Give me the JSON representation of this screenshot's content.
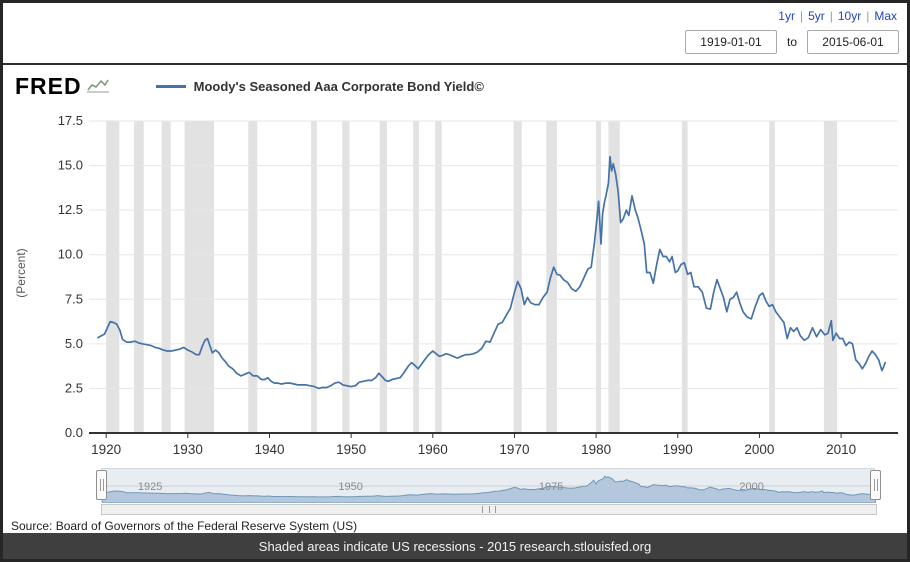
{
  "header": {
    "range_links": [
      "1yr",
      "5yr",
      "10yr",
      "Max"
    ],
    "start_date": "1919-01-01",
    "to_label": "to",
    "end_date": "2015-06-01"
  },
  "logo": {
    "text": "FRED"
  },
  "legend": {
    "label": "Moody's Seasoned Aaa Corporate Bond Yield©"
  },
  "colors": {
    "line": "#4572a7",
    "recession": "#e2e2e2",
    "grid": "#e6e6e6",
    "axis": "#333333",
    "link": "#2244bb",
    "footer_bg": "#3f3f3f",
    "mini_fill": "#b3c8dc",
    "mini_line": "#7097b8",
    "mini_bg": "#e8edf2"
  },
  "chart_data": {
    "type": "line",
    "title": "Moody's Seasoned Aaa Corporate Bond Yield©",
    "xlabel": "",
    "ylabel": "(Percent)",
    "ylim": [
      0,
      17.5
    ],
    "yticks": [
      0.0,
      2.5,
      5.0,
      7.5,
      10.0,
      12.5,
      15.0,
      17.5
    ],
    "xlim": [
      1919,
      2015.5
    ],
    "xticks": [
      1920,
      1930,
      1940,
      1950,
      1960,
      1970,
      1980,
      1990,
      2000,
      2010
    ],
    "grid": true,
    "legend_position": "top-left",
    "series": [
      {
        "name": "Moody's Seasoned Aaa Corporate Bond Yield",
        "points": [
          [
            1919.0,
            5.35
          ],
          [
            1919.4,
            5.45
          ],
          [
            1919.8,
            5.55
          ],
          [
            1920.2,
            5.95
          ],
          [
            1920.5,
            6.25
          ],
          [
            1920.9,
            6.2
          ],
          [
            1921.3,
            6.1
          ],
          [
            1921.7,
            5.75
          ],
          [
            1922.0,
            5.25
          ],
          [
            1922.5,
            5.1
          ],
          [
            1923.0,
            5.1
          ],
          [
            1923.5,
            5.15
          ],
          [
            1924.0,
            5.05
          ],
          [
            1924.5,
            5.0
          ],
          [
            1925.0,
            4.95
          ],
          [
            1925.5,
            4.9
          ],
          [
            1926.0,
            4.8
          ],
          [
            1926.5,
            4.75
          ],
          [
            1927.0,
            4.65
          ],
          [
            1927.5,
            4.6
          ],
          [
            1928.0,
            4.6
          ],
          [
            1928.5,
            4.65
          ],
          [
            1929.0,
            4.7
          ],
          [
            1929.5,
            4.8
          ],
          [
            1930.0,
            4.65
          ],
          [
            1930.5,
            4.55
          ],
          [
            1931.0,
            4.4
          ],
          [
            1931.4,
            4.4
          ],
          [
            1931.8,
            4.9
          ],
          [
            1932.1,
            5.2
          ],
          [
            1932.4,
            5.3
          ],
          [
            1932.7,
            4.9
          ],
          [
            1933.0,
            4.5
          ],
          [
            1933.4,
            4.65
          ],
          [
            1933.8,
            4.5
          ],
          [
            1934.2,
            4.2
          ],
          [
            1934.6,
            4.0
          ],
          [
            1935.0,
            3.75
          ],
          [
            1935.5,
            3.6
          ],
          [
            1936.0,
            3.35
          ],
          [
            1936.5,
            3.2
          ],
          [
            1937.0,
            3.3
          ],
          [
            1937.5,
            3.4
          ],
          [
            1938.0,
            3.2
          ],
          [
            1938.5,
            3.2
          ],
          [
            1939.0,
            3.0
          ],
          [
            1939.4,
            3.0
          ],
          [
            1939.8,
            3.1
          ],
          [
            1940.2,
            2.9
          ],
          [
            1940.6,
            2.8
          ],
          [
            1941.0,
            2.8
          ],
          [
            1941.5,
            2.75
          ],
          [
            1942.0,
            2.8
          ],
          [
            1942.5,
            2.8
          ],
          [
            1943.0,
            2.75
          ],
          [
            1943.5,
            2.7
          ],
          [
            1944.0,
            2.7
          ],
          [
            1944.5,
            2.7
          ],
          [
            1945.0,
            2.65
          ],
          [
            1945.5,
            2.6
          ],
          [
            1946.0,
            2.5
          ],
          [
            1946.5,
            2.55
          ],
          [
            1947.0,
            2.55
          ],
          [
            1947.5,
            2.65
          ],
          [
            1948.0,
            2.8
          ],
          [
            1948.5,
            2.85
          ],
          [
            1949.0,
            2.7
          ],
          [
            1949.5,
            2.65
          ],
          [
            1950.0,
            2.6
          ],
          [
            1950.5,
            2.65
          ],
          [
            1951.0,
            2.85
          ],
          [
            1951.5,
            2.9
          ],
          [
            1952.0,
            2.95
          ],
          [
            1952.5,
            2.95
          ],
          [
            1953.0,
            3.1
          ],
          [
            1953.4,
            3.35
          ],
          [
            1953.8,
            3.15
          ],
          [
            1954.2,
            2.95
          ],
          [
            1954.6,
            2.9
          ],
          [
            1955.0,
            3.0
          ],
          [
            1955.5,
            3.05
          ],
          [
            1956.0,
            3.1
          ],
          [
            1956.5,
            3.4
          ],
          [
            1957.0,
            3.75
          ],
          [
            1957.4,
            3.95
          ],
          [
            1957.8,
            3.8
          ],
          [
            1958.2,
            3.6
          ],
          [
            1958.6,
            3.85
          ],
          [
            1959.0,
            4.1
          ],
          [
            1959.5,
            4.4
          ],
          [
            1960.0,
            4.6
          ],
          [
            1960.4,
            4.45
          ],
          [
            1960.8,
            4.3
          ],
          [
            1961.2,
            4.35
          ],
          [
            1961.6,
            4.45
          ],
          [
            1962.0,
            4.4
          ],
          [
            1962.5,
            4.3
          ],
          [
            1963.0,
            4.2
          ],
          [
            1963.5,
            4.3
          ],
          [
            1964.0,
            4.4
          ],
          [
            1964.5,
            4.4
          ],
          [
            1965.0,
            4.45
          ],
          [
            1965.5,
            4.55
          ],
          [
            1966.0,
            4.75
          ],
          [
            1966.5,
            5.15
          ],
          [
            1967.0,
            5.1
          ],
          [
            1967.5,
            5.6
          ],
          [
            1968.0,
            6.1
          ],
          [
            1968.5,
            6.2
          ],
          [
            1969.0,
            6.6
          ],
          [
            1969.5,
            7.0
          ],
          [
            1970.0,
            7.9
          ],
          [
            1970.4,
            8.5
          ],
          [
            1970.8,
            8.1
          ],
          [
            1971.2,
            7.2
          ],
          [
            1971.6,
            7.6
          ],
          [
            1972.0,
            7.3
          ],
          [
            1972.5,
            7.2
          ],
          [
            1973.0,
            7.2
          ],
          [
            1973.5,
            7.6
          ],
          [
            1974.0,
            7.9
          ],
          [
            1974.4,
            8.7
          ],
          [
            1974.8,
            9.3
          ],
          [
            1975.2,
            8.9
          ],
          [
            1975.6,
            8.85
          ],
          [
            1976.0,
            8.6
          ],
          [
            1976.5,
            8.45
          ],
          [
            1977.0,
            8.1
          ],
          [
            1977.5,
            7.95
          ],
          [
            1978.0,
            8.2
          ],
          [
            1978.5,
            8.7
          ],
          [
            1979.0,
            9.2
          ],
          [
            1979.4,
            9.3
          ],
          [
            1979.8,
            10.7
          ],
          [
            1980.1,
            12.0
          ],
          [
            1980.3,
            13.0
          ],
          [
            1980.6,
            10.6
          ],
          [
            1980.8,
            12.3
          ],
          [
            1981.0,
            12.9
          ],
          [
            1981.2,
            13.3
          ],
          [
            1981.5,
            14.0
          ],
          [
            1981.7,
            15.5
          ],
          [
            1981.9,
            14.7
          ],
          [
            1982.1,
            15.1
          ],
          [
            1982.4,
            14.5
          ],
          [
            1982.7,
            13.5
          ],
          [
            1983.0,
            11.8
          ],
          [
            1983.3,
            12.0
          ],
          [
            1983.7,
            12.5
          ],
          [
            1984.0,
            12.2
          ],
          [
            1984.4,
            13.3
          ],
          [
            1984.8,
            12.5
          ],
          [
            1985.1,
            12.1
          ],
          [
            1985.5,
            11.4
          ],
          [
            1985.9,
            10.6
          ],
          [
            1986.2,
            9.0
          ],
          [
            1986.6,
            9.0
          ],
          [
            1987.0,
            8.4
          ],
          [
            1987.4,
            9.4
          ],
          [
            1987.8,
            10.3
          ],
          [
            1988.2,
            9.9
          ],
          [
            1988.6,
            9.9
          ],
          [
            1989.0,
            9.6
          ],
          [
            1989.3,
            9.9
          ],
          [
            1989.7,
            9.0
          ],
          [
            1990.0,
            9.1
          ],
          [
            1990.4,
            9.45
          ],
          [
            1990.8,
            9.55
          ],
          [
            1991.2,
            8.9
          ],
          [
            1991.6,
            9.0
          ],
          [
            1992.0,
            8.2
          ],
          [
            1992.5,
            8.2
          ],
          [
            1993.0,
            7.9
          ],
          [
            1993.5,
            7.0
          ],
          [
            1994.0,
            6.95
          ],
          [
            1994.4,
            7.9
          ],
          [
            1994.8,
            8.6
          ],
          [
            1995.2,
            8.1
          ],
          [
            1995.6,
            7.6
          ],
          [
            1996.0,
            6.8
          ],
          [
            1996.4,
            7.5
          ],
          [
            1996.8,
            7.6
          ],
          [
            1997.2,
            7.9
          ],
          [
            1997.6,
            7.3
          ],
          [
            1998.0,
            6.8
          ],
          [
            1998.5,
            6.5
          ],
          [
            1999.0,
            6.4
          ],
          [
            1999.5,
            7.1
          ],
          [
            2000.0,
            7.7
          ],
          [
            2000.4,
            7.85
          ],
          [
            2000.8,
            7.4
          ],
          [
            2001.2,
            7.1
          ],
          [
            2001.6,
            7.2
          ],
          [
            2002.0,
            6.8
          ],
          [
            2002.5,
            6.5
          ],
          [
            2003.0,
            6.2
          ],
          [
            2003.4,
            5.3
          ],
          [
            2003.8,
            5.9
          ],
          [
            2004.2,
            5.7
          ],
          [
            2004.6,
            5.9
          ],
          [
            2005.0,
            5.45
          ],
          [
            2005.5,
            5.2
          ],
          [
            2006.0,
            5.35
          ],
          [
            2006.5,
            5.9
          ],
          [
            2007.0,
            5.4
          ],
          [
            2007.5,
            5.8
          ],
          [
            2008.0,
            5.5
          ],
          [
            2008.4,
            5.6
          ],
          [
            2008.8,
            6.3
          ],
          [
            2009.0,
            5.2
          ],
          [
            2009.4,
            5.6
          ],
          [
            2009.8,
            5.3
          ],
          [
            2010.2,
            5.3
          ],
          [
            2010.6,
            4.9
          ],
          [
            2011.0,
            5.1
          ],
          [
            2011.4,
            5.0
          ],
          [
            2011.8,
            4.1
          ],
          [
            2012.2,
            3.9
          ],
          [
            2012.6,
            3.6
          ],
          [
            2013.0,
            3.9
          ],
          [
            2013.4,
            4.3
          ],
          [
            2013.8,
            4.6
          ],
          [
            2014.2,
            4.4
          ],
          [
            2014.6,
            4.1
          ],
          [
            2015.0,
            3.5
          ],
          [
            2015.2,
            3.7
          ],
          [
            2015.4,
            3.95
          ]
        ]
      }
    ],
    "recessions": [
      [
        1920.0,
        1921.6
      ],
      [
        1923.4,
        1924.6
      ],
      [
        1926.8,
        1927.9
      ],
      [
        1929.6,
        1933.2
      ],
      [
        1937.4,
        1938.5
      ],
      [
        1945.1,
        1945.8
      ],
      [
        1948.9,
        1949.8
      ],
      [
        1953.5,
        1954.4
      ],
      [
        1957.6,
        1958.3
      ],
      [
        1960.3,
        1961.1
      ],
      [
        1969.9,
        1970.9
      ],
      [
        1973.9,
        1975.2
      ],
      [
        1980.0,
        1980.6
      ],
      [
        1981.5,
        1982.9
      ],
      [
        1990.5,
        1991.2
      ],
      [
        2001.2,
        2001.9
      ],
      [
        2007.9,
        2009.5
      ]
    ]
  },
  "mini_chart": {
    "labels": [
      {
        "text": "1925",
        "year": 1925
      },
      {
        "text": "1950",
        "year": 1950
      },
      {
        "text": "1975",
        "year": 1975
      },
      {
        "text": "2000",
        "year": 2000
      }
    ]
  },
  "source_line": "Source: Board of Governors of the Federal Reserve System (US)",
  "footer_note": "Shaded areas indicate US recessions - 2015 research.stlouisfed.org"
}
